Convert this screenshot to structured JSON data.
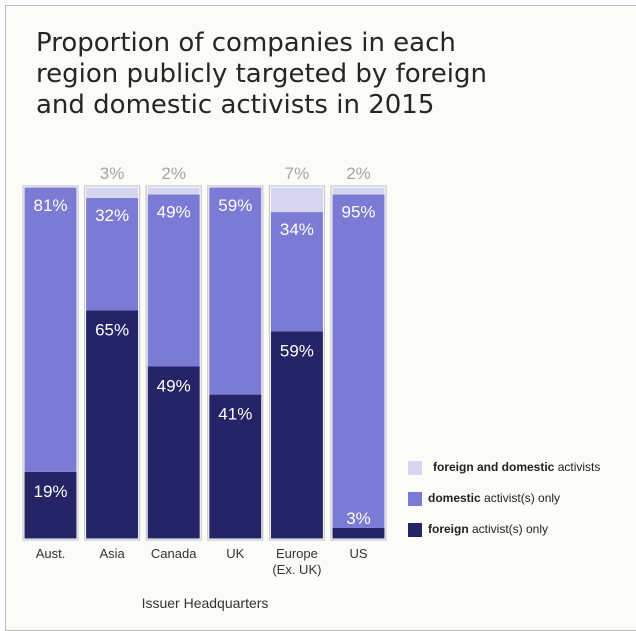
{
  "chart_data": {
    "type": "bar",
    "stacked": true,
    "title": "Proportion of companies in each region publicly targeted by foreign and domestic activists in 2015",
    "xlabel": "Issuer Headquarters",
    "ylabel": "",
    "ylim": [
      0,
      100
    ],
    "categories": [
      "Aust.",
      "Asia",
      "Canada",
      "UK",
      "Europe (Ex. UK)",
      "US"
    ],
    "category_lines": [
      [
        "Aust."
      ],
      [
        "Asia"
      ],
      [
        "Canada"
      ],
      [
        "UK"
      ],
      [
        "Europe",
        "(Ex. UK)"
      ],
      [
        "US"
      ]
    ],
    "series": [
      {
        "name_bold": "foreign",
        "name_rest": " activist(s) only",
        "color": "#242466",
        "values": [
          19,
          65,
          49,
          41,
          59,
          3
        ],
        "labels": [
          "19%",
          "65%",
          "49%",
          "41%",
          "59%",
          "3%"
        ]
      },
      {
        "name_bold": "domestic",
        "name_rest": " activist(s) only",
        "color": "#7b7bd6",
        "values": [
          81,
          32,
          49,
          59,
          34,
          95
        ],
        "labels": [
          "81%",
          "32%",
          "49%",
          "59%",
          "34%",
          "95%"
        ]
      },
      {
        "name_bold": "foreign and domestic",
        "name_rest": " activists",
        "color": "#d5d5f0",
        "values": [
          0,
          3,
          2,
          0,
          7,
          2
        ],
        "labels": [
          "",
          "3%",
          "2%",
          "",
          "7%",
          "2%"
        ]
      }
    ],
    "legend_position": "right",
    "grid": false
  }
}
